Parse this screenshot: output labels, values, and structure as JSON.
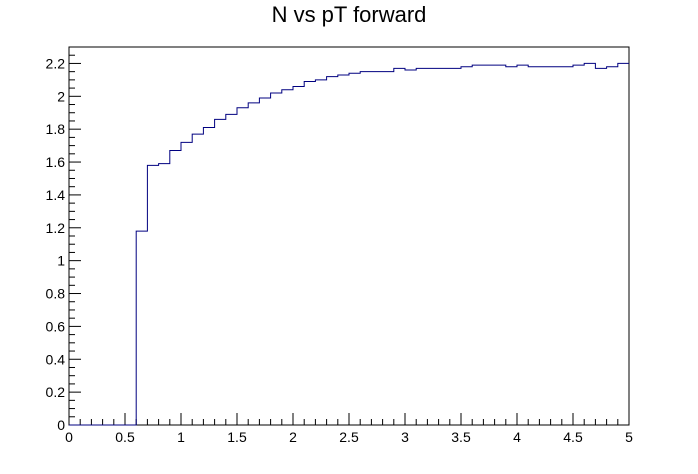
{
  "chart_data": {
    "type": "line",
    "title": "N vs pT forward",
    "xlabel": "",
    "ylabel": "",
    "xlim": [
      0,
      5
    ],
    "ylim": [
      0,
      2.3
    ],
    "grid": false,
    "line_color": "#000080",
    "x_ticks": [
      "0",
      "0.5",
      "1",
      "1.5",
      "2",
      "2.5",
      "3",
      "3.5",
      "4",
      "4.5",
      "5"
    ],
    "y_ticks": [
      "0",
      "0.2",
      "0.4",
      "0.6",
      "0.8",
      "1",
      "1.2",
      "1.4",
      "1.6",
      "1.8",
      "2",
      "2.2"
    ],
    "bin_width": 0.1,
    "bin_edges_start": 0,
    "bin_values": [
      0,
      0,
      0,
      0,
      0,
      0,
      1.18,
      1.58,
      1.59,
      1.67,
      1.72,
      1.77,
      1.81,
      1.86,
      1.89,
      1.93,
      1.96,
      1.99,
      2.02,
      2.04,
      2.06,
      2.09,
      2.1,
      2.12,
      2.13,
      2.14,
      2.15,
      2.15,
      2.15,
      2.17,
      2.16,
      2.17,
      2.17,
      2.17,
      2.17,
      2.18,
      2.19,
      2.19,
      2.19,
      2.18,
      2.19,
      2.18,
      2.18,
      2.18,
      2.18,
      2.19,
      2.2,
      2.17,
      2.18,
      2.2
    ]
  }
}
